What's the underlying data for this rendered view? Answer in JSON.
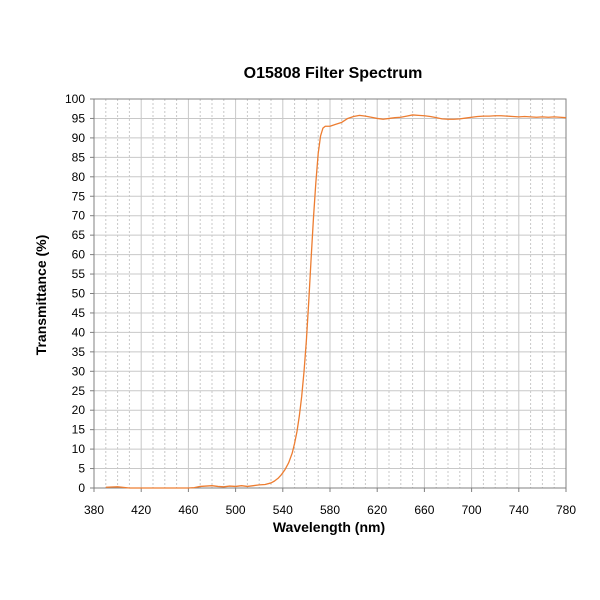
{
  "chart_data": {
    "type": "line",
    "title": "O15808 Filter Spectrum",
    "xlabel": "Wavelength (nm)",
    "ylabel": "Transmittance (%)",
    "xlim": [
      380,
      780
    ],
    "ylim": [
      0,
      100
    ],
    "x_ticks": [
      380,
      420,
      460,
      500,
      540,
      580,
      620,
      660,
      700,
      740,
      780
    ],
    "y_ticks": [
      0,
      5,
      10,
      15,
      20,
      25,
      30,
      35,
      40,
      45,
      50,
      55,
      60,
      65,
      70,
      75,
      80,
      85,
      90,
      95,
      100
    ],
    "x_minor_step": 10,
    "grid": true,
    "legend": "none",
    "series": [
      {
        "color": "#ED7D31",
        "x": [
          390,
          400,
          410,
          420,
          430,
          440,
          450,
          460,
          465,
          470,
          475,
          480,
          485,
          490,
          495,
          500,
          505,
          510,
          515,
          520,
          525,
          530,
          533,
          536,
          539,
          542,
          545,
          548,
          550,
          552,
          554,
          556,
          558,
          560,
          562,
          564,
          566,
          568,
          570,
          572,
          574,
          576,
          578,
          580,
          585,
          590,
          595,
          600,
          605,
          610,
          615,
          620,
          625,
          630,
          635,
          640,
          645,
          650,
          655,
          660,
          665,
          670,
          675,
          680,
          685,
          690,
          695,
          700,
          705,
          710,
          715,
          720,
          725,
          730,
          735,
          740,
          745,
          750,
          755,
          760,
          765,
          770,
          775,
          780
        ],
        "y": [
          0.2,
          0.3,
          0,
          0,
          0,
          0,
          0,
          0,
          0.1,
          0.4,
          0.5,
          0.6,
          0.4,
          0.3,
          0.5,
          0.4,
          0.6,
          0.4,
          0.6,
          0.8,
          0.9,
          1.3,
          1.8,
          2.5,
          3.5,
          4.8,
          6.5,
          9.0,
          11.5,
          14.5,
          18.5,
          23.5,
          30.0,
          38.0,
          48.0,
          59.0,
          69.5,
          78.5,
          86.0,
          90.5,
          92.5,
          93.0,
          93.0,
          93.0,
          93.5,
          94.0,
          95.0,
          95.5,
          95.8,
          95.6,
          95.3,
          95.0,
          94.8,
          95.0,
          95.2,
          95.3,
          95.6,
          95.9,
          95.8,
          95.7,
          95.5,
          95.2,
          94.9,
          94.8,
          94.8,
          94.9,
          95.1,
          95.3,
          95.5,
          95.6,
          95.6,
          95.7,
          95.7,
          95.6,
          95.5,
          95.4,
          95.5,
          95.4,
          95.3,
          95.4,
          95.3,
          95.4,
          95.3,
          95.2
        ]
      }
    ]
  }
}
